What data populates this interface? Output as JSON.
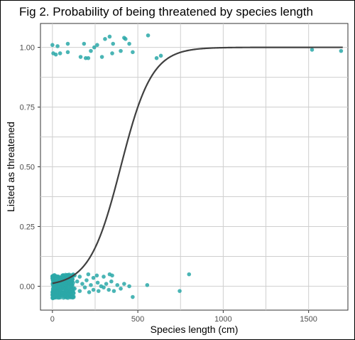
{
  "chart_data": {
    "type": "scatter",
    "title": "Fig 2. Probability of being threatened by species length",
    "xlabel": "Species length (cm)",
    "ylabel": "Listed as threatened",
    "xlim": [
      -70,
      1730
    ],
    "ylim": [
      -0.1,
      1.1
    ],
    "xticks": [
      0,
      500,
      1000,
      1500
    ],
    "yticks": [
      0.0,
      0.25,
      0.5,
      0.75,
      1.0
    ],
    "ytick_labels": [
      "0.00",
      "0.25",
      "0.50",
      "0.75",
      "1.00"
    ],
    "grid": true,
    "legend": "none",
    "point_color": "#2aa8a8",
    "curve_color": "#404040",
    "points": [
      {
        "x": 0,
        "y": 1.01
      },
      {
        "x": 30,
        "y": 1.005
      },
      {
        "x": 90,
        "y": 1.015
      },
      {
        "x": 185,
        "y": 1.015
      },
      {
        "x": 225,
        "y": 0.985
      },
      {
        "x": 245,
        "y": 1.0
      },
      {
        "x": 262,
        "y": 1.01
      },
      {
        "x": 308,
        "y": 1.035
      },
      {
        "x": 335,
        "y": 1.045
      },
      {
        "x": 355,
        "y": 1.015
      },
      {
        "x": 420,
        "y": 1.04
      },
      {
        "x": 428,
        "y": 1.035
      },
      {
        "x": 450,
        "y": 1.015
      },
      {
        "x": 560,
        "y": 1.05
      },
      {
        "x": 5,
        "y": 0.975
      },
      {
        "x": 20,
        "y": 0.97
      },
      {
        "x": 45,
        "y": 0.975
      },
      {
        "x": 90,
        "y": 0.98
      },
      {
        "x": 165,
        "y": 0.96
      },
      {
        "x": 195,
        "y": 0.955
      },
      {
        "x": 210,
        "y": 0.955
      },
      {
        "x": 290,
        "y": 0.96
      },
      {
        "x": 350,
        "y": 0.975
      },
      {
        "x": 400,
        "y": 0.985
      },
      {
        "x": 470,
        "y": 0.98
      },
      {
        "x": 610,
        "y": 0.955
      },
      {
        "x": 635,
        "y": 0.965
      },
      {
        "x": 1520,
        "y": 0.99
      },
      {
        "x": 1690,
        "y": 0.985
      },
      {
        "x": 130,
        "y": 0.045
      },
      {
        "x": 160,
        "y": 0.04
      },
      {
        "x": 210,
        "y": 0.05
      },
      {
        "x": 240,
        "y": 0.035
      },
      {
        "x": 260,
        "y": 0.045
      },
      {
        "x": 300,
        "y": 0.04
      },
      {
        "x": 335,
        "y": 0.05
      },
      {
        "x": 350,
        "y": 0.045
      },
      {
        "x": 145,
        "y": 0.02
      },
      {
        "x": 175,
        "y": 0.01
      },
      {
        "x": 200,
        "y": 0.025
      },
      {
        "x": 225,
        "y": 0.005
      },
      {
        "x": 265,
        "y": 0.015
      },
      {
        "x": 285,
        "y": 0.0
      },
      {
        "x": 315,
        "y": 0.01
      },
      {
        "x": 345,
        "y": 0.02
      },
      {
        "x": 380,
        "y": 0.005
      },
      {
        "x": 420,
        "y": 0.01
      },
      {
        "x": 450,
        "y": 0.0
      },
      {
        "x": 130,
        "y": -0.01
      },
      {
        "x": 160,
        "y": -0.02
      },
      {
        "x": 190,
        "y": -0.005
      },
      {
        "x": 215,
        "y": -0.025
      },
      {
        "x": 240,
        "y": -0.015
      },
      {
        "x": 270,
        "y": -0.02
      },
      {
        "x": 300,
        "y": -0.005
      },
      {
        "x": 330,
        "y": -0.015
      },
      {
        "x": 360,
        "y": -0.02
      },
      {
        "x": 400,
        "y": -0.01
      },
      {
        "x": 470,
        "y": -0.045
      },
      {
        "x": 555,
        "y": 0.005
      },
      {
        "x": 745,
        "y": -0.02
      },
      {
        "x": 800,
        "y": 0.05
      }
    ],
    "dense_cluster": {
      "x_range": [
        0,
        125
      ],
      "y_range": [
        -0.05,
        0.05
      ],
      "count": 320
    },
    "curve": {
      "function": "logistic",
      "intercept": -4.4,
      "slope": 0.011,
      "x_range": [
        0,
        1700
      ]
    }
  }
}
